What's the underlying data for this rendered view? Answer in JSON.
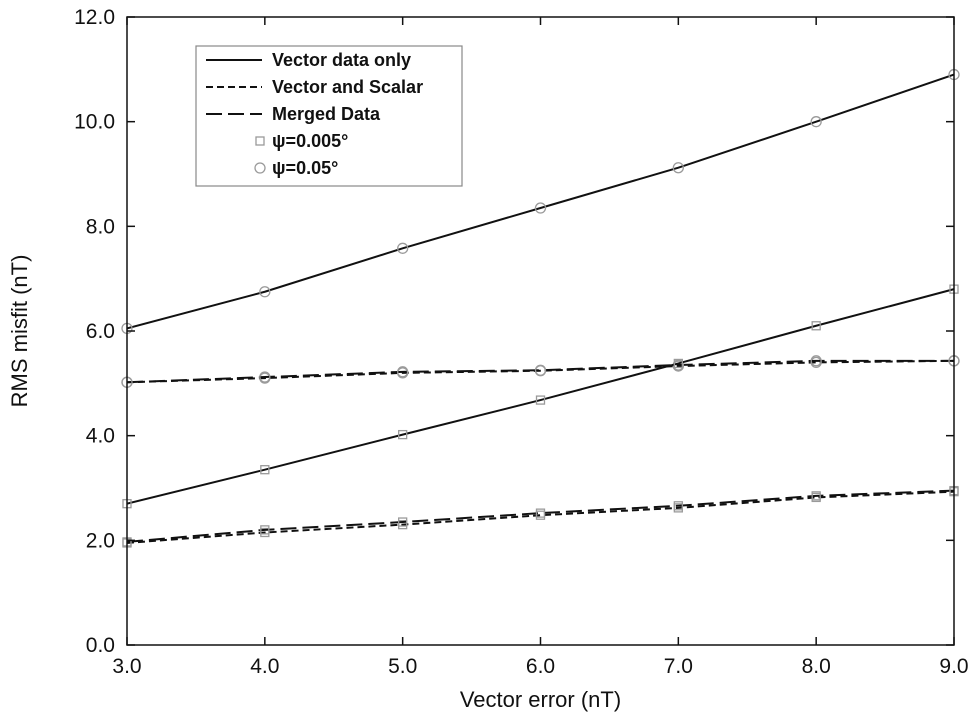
{
  "chart_data": {
    "type": "line",
    "xlabel": "Vector error (nT)",
    "ylabel": "RMS misfit (nT)",
    "xlim": [
      3.0,
      9.0
    ],
    "ylim": [
      0.0,
      12.0
    ],
    "x_ticks": [
      "3.0",
      "4.0",
      "5.0",
      "6.0",
      "7.0",
      "8.0",
      "9.0"
    ],
    "y_ticks": [
      "0.0",
      "2.0",
      "4.0",
      "6.0",
      "8.0",
      "10.0",
      "12.0"
    ],
    "x": [
      3,
      4,
      5,
      6,
      7,
      8,
      9
    ],
    "grid": false,
    "legend_position": "top-left",
    "legend": [
      {
        "label": "Vector data only",
        "symbol": "solid-line"
      },
      {
        "label": "Vector and Scalar",
        "symbol": "short-dashed-line"
      },
      {
        "label": "Merged Data",
        "symbol": "long-dashed-line"
      },
      {
        "label": "ψ=0.005°",
        "symbol": "square-marker"
      },
      {
        "label": "ψ=0.05°",
        "symbol": "circle-marker"
      }
    ],
    "series": [
      {
        "line": "solid",
        "marker": "circle",
        "values": [
          6.05,
          6.75,
          7.58,
          8.35,
          9.12,
          10.0,
          10.9
        ]
      },
      {
        "line": "short-dashed",
        "marker": "circle",
        "values": [
          5.02,
          5.1,
          5.2,
          5.24,
          5.33,
          5.4,
          5.43
        ]
      },
      {
        "line": "long-dashed",
        "marker": "circle",
        "values": [
          5.02,
          5.12,
          5.22,
          5.25,
          5.35,
          5.43,
          5.43
        ]
      },
      {
        "line": "solid",
        "marker": "square",
        "values": [
          2.7,
          3.35,
          4.02,
          4.68,
          5.38,
          6.1,
          6.8
        ]
      },
      {
        "line": "short-dashed",
        "marker": "square",
        "values": [
          1.95,
          2.15,
          2.3,
          2.48,
          2.62,
          2.82,
          2.93
        ]
      },
      {
        "line": "long-dashed",
        "marker": "square",
        "values": [
          1.97,
          2.2,
          2.35,
          2.52,
          2.66,
          2.85,
          2.95
        ]
      }
    ],
    "colors": {
      "line": "#111111",
      "marker": "#9a9a9a",
      "legend_border": "#888888"
    }
  }
}
